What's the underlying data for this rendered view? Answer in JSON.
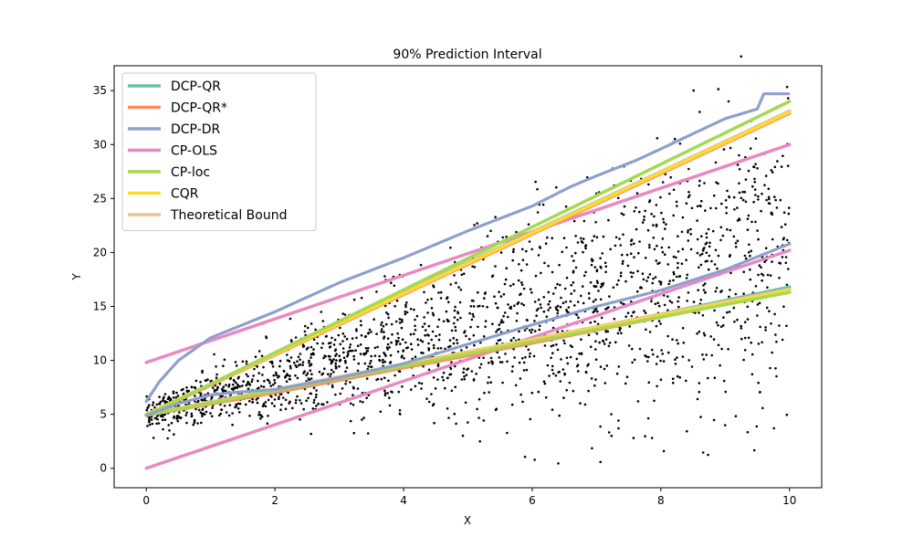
{
  "chart_data": {
    "type": "line",
    "title": "90% Prediction Interval",
    "xlabel": "X",
    "ylabel": "Y",
    "xlim": [
      -0.5,
      10.5
    ],
    "ylim": [
      -1.8,
      37.3
    ],
    "xticks": [
      0,
      2,
      4,
      6,
      8,
      10
    ],
    "yticks": [
      0,
      5,
      10,
      15,
      20,
      25,
      30,
      35
    ],
    "grid": false,
    "legend_position": "top-left",
    "series": [
      {
        "name": "DCP-QR",
        "color": "#66c2a5",
        "lower": [
          [
            0,
            5.0
          ],
          [
            2,
            7.2
          ],
          [
            4,
            9.5
          ],
          [
            6,
            11.9
          ],
          [
            8,
            14.3
          ],
          [
            10,
            16.8
          ]
        ],
        "upper": [
          [
            0,
            5.0
          ],
          [
            2,
            10.6
          ],
          [
            4,
            16.3
          ],
          [
            6,
            21.9
          ],
          [
            8,
            27.5
          ],
          [
            10,
            33.1
          ]
        ]
      },
      {
        "name": "DCP-QR*",
        "color": "#fc8d62",
        "lower": [
          [
            0,
            4.9
          ],
          [
            2,
            7.0
          ],
          [
            4,
            9.3
          ],
          [
            6,
            11.6
          ],
          [
            8,
            14.0
          ],
          [
            10,
            16.4
          ]
        ],
        "upper": [
          [
            0,
            4.9
          ],
          [
            2,
            10.5
          ],
          [
            4,
            16.1
          ],
          [
            6,
            21.7
          ],
          [
            8,
            27.3
          ],
          [
            10,
            32.9
          ]
        ]
      },
      {
        "name": "DCP-DR",
        "color": "#8da0cb",
        "lower": [
          [
            0,
            4.9
          ],
          [
            0.5,
            6.0
          ],
          [
            1,
            6.8
          ],
          [
            1.5,
            7.1
          ],
          [
            2,
            7.3
          ],
          [
            3,
            8.4
          ],
          [
            4,
            9.7
          ],
          [
            5,
            11.5
          ],
          [
            6,
            13.3
          ],
          [
            7,
            15.0
          ],
          [
            8,
            16.5
          ],
          [
            9,
            18.4
          ],
          [
            10,
            20.8
          ]
        ],
        "upper": [
          [
            0,
            6.2
          ],
          [
            0.2,
            8.0
          ],
          [
            0.5,
            10.0
          ],
          [
            1,
            12.1
          ],
          [
            2,
            14.5
          ],
          [
            3,
            17.2
          ],
          [
            4,
            19.5
          ],
          [
            5,
            22.0
          ],
          [
            6,
            24.3
          ],
          [
            6.6,
            26.1
          ],
          [
            7,
            27.1
          ],
          [
            7.6,
            28.5
          ],
          [
            8,
            29.6
          ],
          [
            8.5,
            31.0
          ],
          [
            9,
            32.4
          ],
          [
            9.5,
            33.3
          ],
          [
            9.6,
            34.7
          ],
          [
            10,
            34.7
          ]
        ],
        "style": "step-dots"
      },
      {
        "name": "CP-OLS",
        "color": "#e78ac3",
        "lower": [
          [
            0,
            0.0
          ],
          [
            10,
            20.2
          ]
        ],
        "upper": [
          [
            0,
            9.8
          ],
          [
            10,
            30.0
          ]
        ]
      },
      {
        "name": "CP-loc",
        "color": "#a6d854",
        "lower": [
          [
            0,
            4.9
          ],
          [
            10,
            16.3
          ]
        ],
        "upper": [
          [
            0,
            4.9
          ],
          [
            10,
            34.0
          ]
        ]
      },
      {
        "name": "CQR",
        "color": "#ffd92f",
        "lower": [
          [
            0,
            4.9
          ],
          [
            10,
            16.5
          ]
        ],
        "upper": [
          [
            0,
            5.0
          ],
          [
            10,
            33.0
          ]
        ]
      },
      {
        "name": "Theoretical Bound",
        "color": "#e5c494",
        "lower": [
          [
            0,
            5.0
          ],
          [
            10,
            16.6
          ]
        ],
        "upper": [
          [
            0,
            5.0
          ],
          [
            10,
            33.1
          ]
        ]
      }
    ],
    "scatter": {
      "color": "#000000",
      "n_points": 2000,
      "x_range": [
        0,
        10
      ],
      "center_start": 5.0,
      "center_slope": 1.5,
      "spread_start": 0.6,
      "spread_slope": 1.2
    }
  }
}
